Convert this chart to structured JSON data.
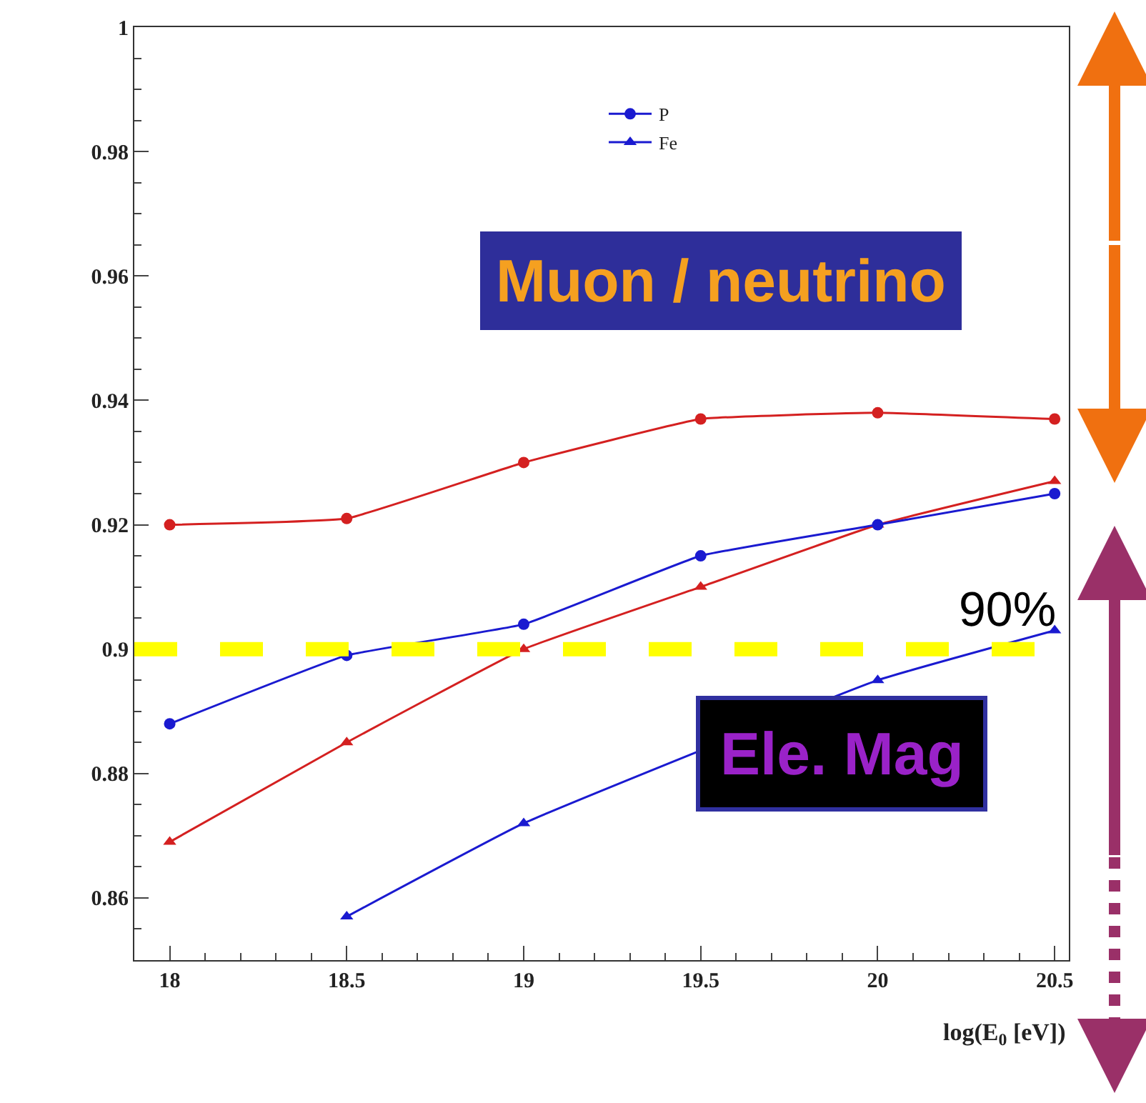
{
  "chart_data": {
    "type": "line",
    "xlabel": "log(E$_{0}$ [eV])",
    "x": [
      18,
      18.5,
      19,
      19.5,
      20,
      20.5
    ],
    "series": [
      {
        "color": "#d42020",
        "marker": "circle",
        "values": [
          0.92,
          0.921,
          0.93,
          0.937,
          0.938,
          0.937
        ]
      },
      {
        "color": "#d42020",
        "marker": "triangle",
        "values": [
          0.869,
          0.885,
          0.9,
          0.91,
          0.92,
          0.927
        ]
      },
      {
        "name": "P",
        "color": "#1a1ad0",
        "marker": "circle",
        "values": [
          0.888,
          0.899,
          0.904,
          0.915,
          0.92,
          0.925
        ]
      },
      {
        "name": "Fe",
        "color": "#1a1ad0",
        "marker": "triangle",
        "values": [
          null,
          0.857,
          0.872,
          null,
          0.895,
          0.903
        ]
      }
    ],
    "xlim": [
      17.9,
      20.54
    ],
    "xticks": [
      18,
      18.5,
      19,
      19.5,
      20,
      20.5
    ],
    "ylim": [
      0.85,
      1
    ],
    "yticks": [
      0.86,
      0.88,
      0.9,
      0.92,
      0.94,
      0.96,
      0.98,
      1
    ],
    "ref_lines": [
      {
        "axis": "y",
        "value": 0.9,
        "label": "90%",
        "color": "#ffff00",
        "line_style": "dashed"
      }
    ],
    "annotations": [
      "Muon / neutrino",
      "Ele. Mag"
    ],
    "legend": "top right",
    "line_style": "solid"
  }
}
